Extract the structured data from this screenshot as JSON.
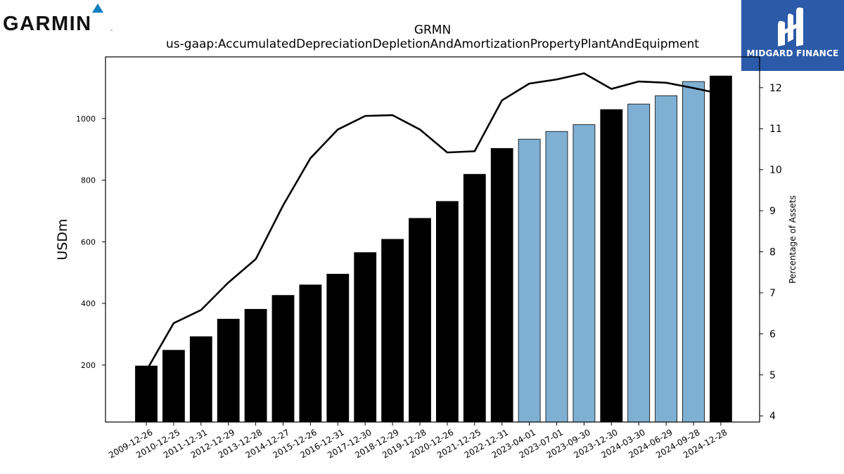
{
  "header": {
    "logo_text": "GARMIN",
    "badge_text": "MIDGARD FINANCE",
    "brand_color": "#2b5aa9",
    "garmin_triangle_color": "#0a7fc3"
  },
  "chart_data": {
    "type": "bar",
    "title": "GRMN",
    "subtitle": "us-gaap:AccumulatedDepreciationDepletionAndAmortizationPropertyPlantAndEquipment",
    "ylabel": "USDm",
    "y2label": "Percentage of Assets",
    "ylim": [
      15,
      1200
    ],
    "y2lim": [
      3.85,
      12.75
    ],
    "yticks": [
      200,
      400,
      600,
      800,
      1000
    ],
    "y2ticks": [
      4,
      5,
      6,
      7,
      8,
      9,
      10,
      11,
      12
    ],
    "grid": false,
    "categories": [
      "2009-12-26",
      "2010-12-25",
      "2011-12-31",
      "2012-12-29",
      "2013-12-28",
      "2014-12-27",
      "2015-12-26",
      "2016-12-31",
      "2017-12-30",
      "2018-12-29",
      "2019-12-28",
      "2020-12-26",
      "2021-12-25",
      "2022-12-31",
      "2023-04-01",
      "2023-07-01",
      "2023-09-30",
      "2023-12-30",
      "2024-03-30",
      "2024-06-29",
      "2024-09-28",
      "2024-12-28"
    ],
    "series": [
      {
        "kind": "bar",
        "axis": "left",
        "values": [
          197,
          248,
          292,
          349,
          381,
          426,
          460,
          495,
          565,
          608,
          676,
          731,
          819,
          903,
          933,
          958,
          980,
          1029,
          1047,
          1074,
          1120,
          1138
        ],
        "period": [
          "annual",
          "annual",
          "annual",
          "annual",
          "annual",
          "annual",
          "annual",
          "annual",
          "annual",
          "annual",
          "annual",
          "annual",
          "annual",
          "annual",
          "quarterly",
          "quarterly",
          "quarterly",
          "annual",
          "quarterly",
          "quarterly",
          "quarterly",
          "annual"
        ]
      },
      {
        "kind": "line",
        "axis": "right",
        "values": [
          5.1,
          6.26,
          6.58,
          7.25,
          7.82,
          9.13,
          10.28,
          10.98,
          11.31,
          11.33,
          10.98,
          10.42,
          10.45,
          11.69,
          12.1,
          12.2,
          12.35,
          11.97,
          12.15,
          12.12,
          11.99,
          11.85
        ]
      }
    ],
    "colors": {
      "annual_bar": "#000000",
      "quarterly_bar": "#7fb0d4",
      "line": "#000000"
    }
  }
}
